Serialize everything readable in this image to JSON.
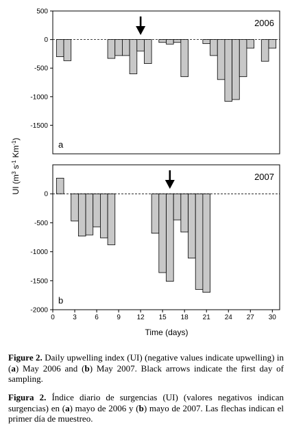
{
  "chart_data": [
    {
      "type": "bar",
      "year_label": "2006",
      "panel_label": "a",
      "ylim": [
        -2000,
        500
      ],
      "yticks": [
        500,
        0,
        -500,
        -1000,
        -1500
      ],
      "arrow_day": 12,
      "x": [
        1,
        2,
        3,
        4,
        5,
        6,
        7,
        8,
        9,
        10,
        11,
        12,
        13,
        14,
        15,
        16,
        17,
        18,
        19,
        20,
        21,
        22,
        23,
        24,
        25,
        26,
        27,
        28,
        29,
        30,
        31
      ],
      "values": [
        -300,
        -370,
        0,
        0,
        0,
        0,
        0,
        -330,
        -280,
        -280,
        -600,
        -200,
        -420,
        0,
        -50,
        -80,
        -50,
        -650,
        0,
        0,
        -70,
        -280,
        -700,
        -1080,
        -1050,
        -650,
        -150,
        0,
        -380,
        -150,
        0
      ]
    },
    {
      "type": "bar",
      "year_label": "2007",
      "panel_label": "b",
      "ylim": [
        -2000,
        500
      ],
      "yticks": [
        0,
        -500,
        -1000,
        -1500,
        -2000
      ],
      "arrow_day": 16,
      "x": [
        1,
        2,
        3,
        4,
        5,
        6,
        7,
        8,
        9,
        10,
        11,
        12,
        13,
        14,
        15,
        16,
        17,
        18,
        19,
        20,
        21,
        22,
        23,
        24,
        25,
        26,
        27,
        28,
        29,
        30,
        31
      ],
      "values": [
        270,
        0,
        -470,
        -730,
        -710,
        -570,
        -760,
        -880,
        0,
        0,
        0,
        0,
        0,
        -680,
        -1360,
        -1510,
        -450,
        -660,
        -1110,
        -1650,
        -1700,
        0,
        0,
        0,
        0,
        0,
        0,
        0,
        0,
        0,
        0
      ]
    }
  ],
  "x_axis": {
    "label": "Time (days)",
    "ticks": [
      0,
      3,
      6,
      9,
      12,
      15,
      18,
      21,
      24,
      27,
      30
    ],
    "range": [
      0,
      31
    ]
  },
  "y_axis_label": {
    "prefix": "UI (m",
    "sup1": "3",
    "mid": " s",
    "sup2": "-1",
    "mid2": " Km",
    "sup3": "-1",
    "suffix": ")"
  },
  "caption_en": {
    "fig": "Figure 2.",
    "t1": " Daily upwelling index (UI) (negative values indicate upwelling) in (",
    "a": "a",
    "t2": ") May 2006 and (",
    "b": "b",
    "t3": ") May 2007. Black arrows indicate the first day of sampling."
  },
  "caption_es": {
    "fig": "Figura 2.",
    "t1": " Índice diario de surgencias (UI) (valores negativos indican surgencias) en (",
    "a": "a",
    "t2": ") mayo de 2006 y (",
    "b": "b",
    "t3": ") mayo de 2007. Las flechas indican el primer día de muestreo."
  },
  "colors": {
    "bar_fill": "#c8c8c8",
    "bar_stroke": "#000000",
    "zero_line": "#000000"
  }
}
